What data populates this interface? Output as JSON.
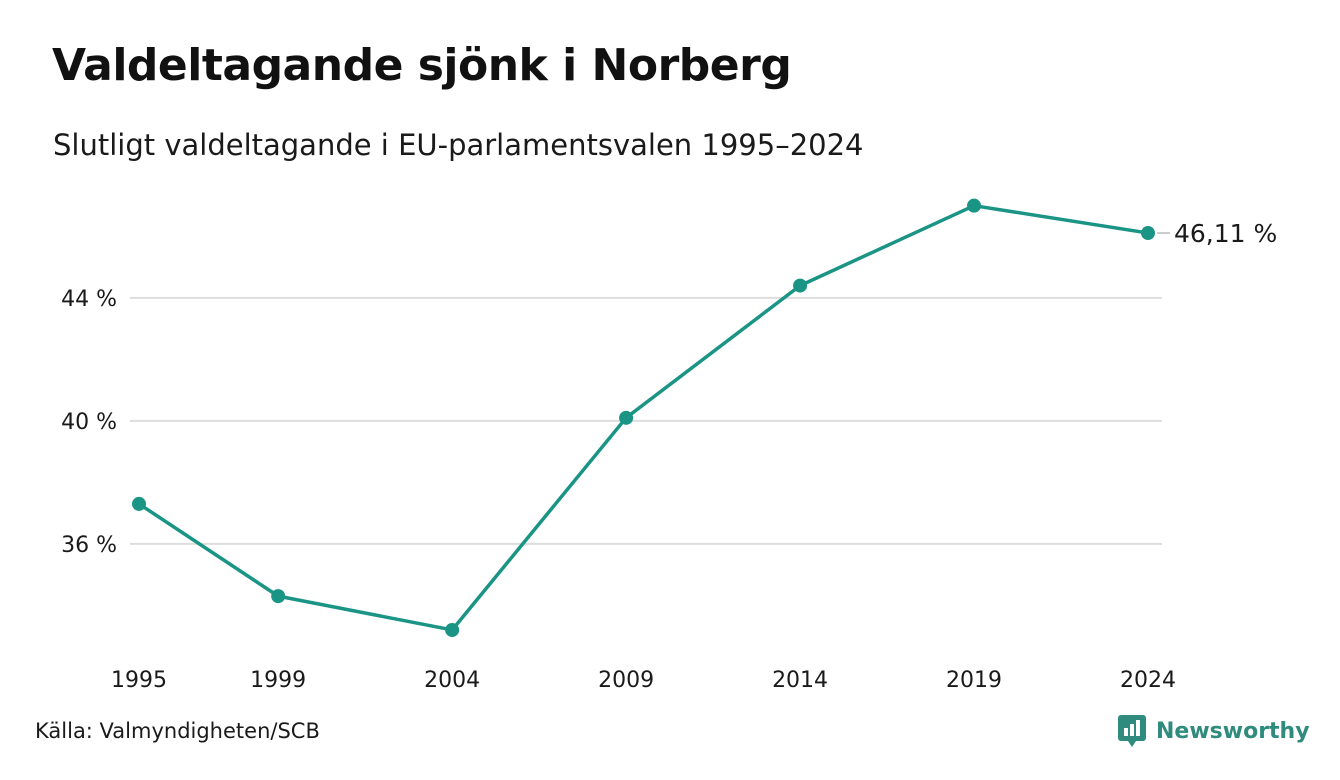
{
  "title": "Valdeltagande sjönk i Norberg",
  "subtitle": "Slutligt valdeltagande i EU-parlamentsvalen 1995–2024",
  "source": "Källa: Valmyndigheten/SCB",
  "brand": {
    "name": "Newsworthy",
    "icon": "newsworthy-logo-icon",
    "color": "#2e8b7d"
  },
  "colors": {
    "line": "#1a9485",
    "grid": "#dddddd",
    "text": "#1a1a1a"
  },
  "chart_data": {
    "type": "line",
    "title": "Valdeltagande sjönk i Norberg",
    "subtitle": "Slutligt valdeltagande i EU-parlamentsvalen 1995–2024",
    "xlabel": "",
    "ylabel": "",
    "x": [
      1995,
      1999,
      2004,
      2009,
      2014,
      2019,
      2024
    ],
    "x_tick_labels": [
      "1995",
      "1999",
      "2004",
      "2009",
      "2014",
      "2019",
      "2024"
    ],
    "series": [
      {
        "values": [
          37.3,
          34.3,
          33.2,
          40.1,
          44.4,
          47.0,
          46.11
        ]
      }
    ],
    "y_ticks": [
      36,
      40,
      44
    ],
    "y_tick_labels": [
      "36 %",
      "40 %",
      "44 %"
    ],
    "ylim": [
      31.8,
      47.9
    ],
    "grid": true,
    "end_label": "46,11 %",
    "legend": "none"
  }
}
